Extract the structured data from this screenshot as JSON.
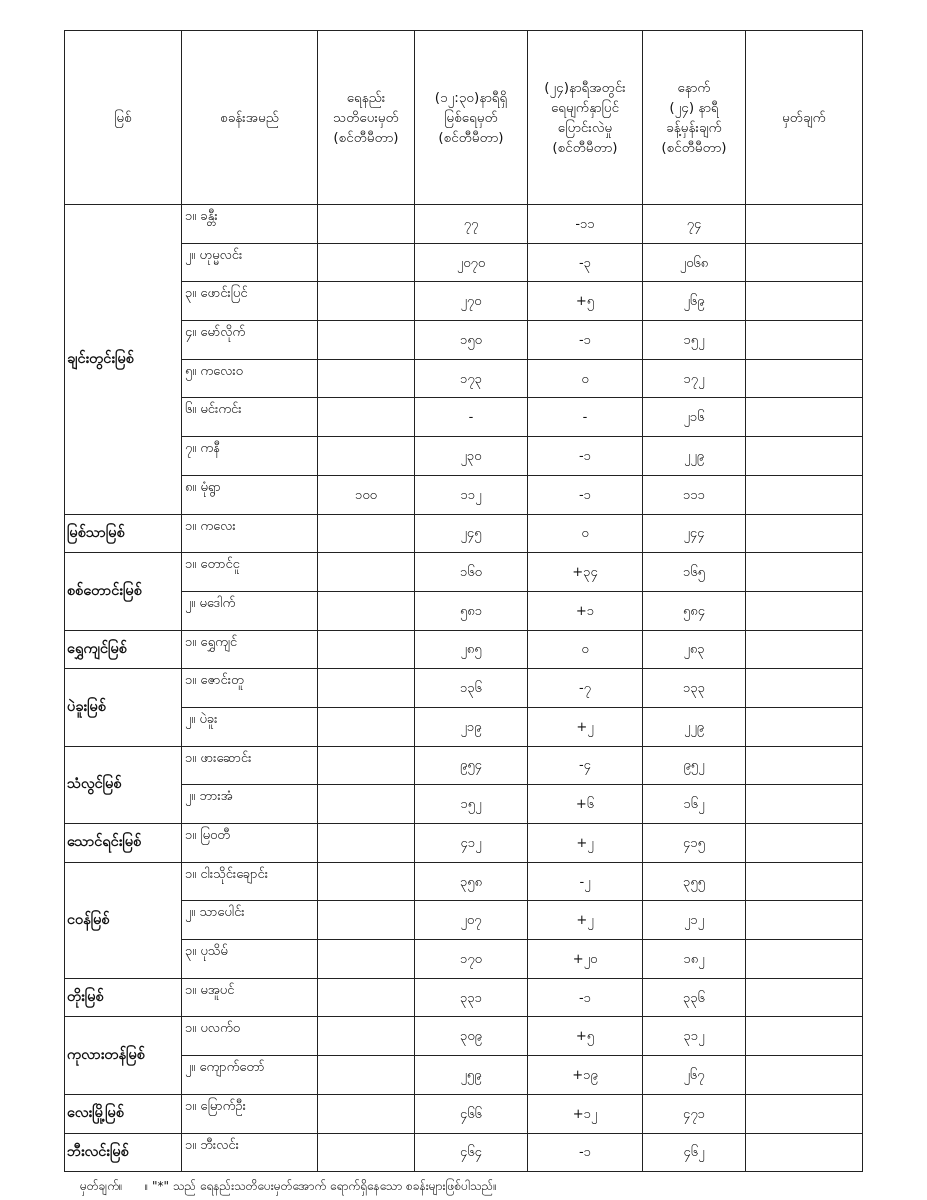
{
  "headers": [
    "မြစ်",
    "စခန်းအမည်",
    "ရေနည်း\nသတိပေးမှတ်\n(စင်တီမီတာ)",
    "(၁၂:၃၀)နာရီရှိ\nမြစ်ရေမှတ်\n(စင်တီမီတာ)",
    "(၂၄)နာရီအတွင်း\nရေမျက်နှာပြင်\nပြောင်းလဲမှု\n(စင်တီမီတာ)",
    "နောက်\n(၂၄) နာရီ\nခန့်မှန်းချက်\n(စင်တီမီတာ)",
    "မှတ်ချက်"
  ],
  "rivers": [
    {
      "name": "ချင်းတွင်းမြစ်",
      "stations": [
        {
          "name": "၁။ ခန္တီး",
          "warning": "",
          "level": "၇၇",
          "change": "-၁၁",
          "forecast": "၇၄",
          "remark": ""
        },
        {
          "name": "၂။ ဟုမ္မလင်း",
          "warning": "",
          "level": "၂၀၇၀",
          "change": "-၃",
          "forecast": "၂၀၆၈",
          "remark": ""
        },
        {
          "name": "၃။ ဖောင်းပြင်",
          "warning": "",
          "level": "၂၇၀",
          "change": "+၅",
          "forecast": "၂၆၉",
          "remark": ""
        },
        {
          "name": "၄။ မော်လိုက်",
          "warning": "",
          "level": "၁၅၀",
          "change": "-၁",
          "forecast": "၁၅၂",
          "remark": ""
        },
        {
          "name": "၅။ ကလေးဝ",
          "warning": "",
          "level": "၁၇၃",
          "change": "၀",
          "forecast": "၁၇၂",
          "remark": ""
        },
        {
          "name": "၆။ မင်းကင်း",
          "warning": "",
          "level": "-",
          "change": "-",
          "forecast": "၂၁၆",
          "remark": ""
        },
        {
          "name": "၇။ ကနီ",
          "warning": "",
          "level": "၂၃၀",
          "change": "-၁",
          "forecast": "၂၂၉",
          "remark": ""
        },
        {
          "name": "၈။ မုံရွာ",
          "warning": "၁၀၀",
          "level": "၁၁၂",
          "change": "-၁",
          "forecast": "၁၁၁",
          "remark": ""
        }
      ]
    },
    {
      "name": "မြစ်သာမြစ်",
      "stations": [
        {
          "name": "၁။ ကလေး",
          "warning": "",
          "level": "၂၄၅",
          "change": "၀",
          "forecast": "၂၄၄",
          "remark": ""
        }
      ]
    },
    {
      "name": "စစ်တောင်းမြစ်",
      "stations": [
        {
          "name": "၁။ တောင်ငူ",
          "warning": "",
          "level": "၁၆၀",
          "change": "+၃၄",
          "forecast": "၁၆၅",
          "remark": ""
        },
        {
          "name": "၂။ မဒေါက်",
          "warning": "",
          "level": "၅၈၁",
          "change": "+၁",
          "forecast": "၅၈၄",
          "remark": ""
        }
      ]
    },
    {
      "name": "ရွှေကျင်မြစ်",
      "stations": [
        {
          "name": "၁။ ရွှေကျင်",
          "warning": "",
          "level": "၂၈၅",
          "change": "၀",
          "forecast": "၂၈၃",
          "remark": ""
        }
      ]
    },
    {
      "name": "ပဲခူးမြစ်",
      "stations": [
        {
          "name": "၁။ ဇောင်းတူ",
          "warning": "",
          "level": "၁၃၆",
          "change": "-၇",
          "forecast": "၁၃၃",
          "remark": ""
        },
        {
          "name": "၂။ ပဲခူး",
          "warning": "",
          "level": "၂၁၉",
          "change": "+၂",
          "forecast": "၂၂၉",
          "remark": ""
        }
      ]
    },
    {
      "name": "သံလွင်မြစ်",
      "stations": [
        {
          "name": "၁။ ဖားဆောင်း",
          "warning": "",
          "level": "၉၅၄",
          "change": "-၄",
          "forecast": "၉၅၂",
          "remark": ""
        },
        {
          "name": "၂။ ဘားအံ",
          "warning": "",
          "level": "၁၅၂",
          "change": "+၆",
          "forecast": "၁၆၂",
          "remark": ""
        }
      ]
    },
    {
      "name": "သောင်ရင်းမြစ်",
      "stations": [
        {
          "name": "၁။ မြဝတီ",
          "warning": "",
          "level": "၄၁၂",
          "change": "+၂",
          "forecast": "၄၁၅",
          "remark": ""
        }
      ]
    },
    {
      "name": "ငဝန်မြစ်",
      "stations": [
        {
          "name": "၁။ ငါးသိုင်းချောင်း",
          "warning": "",
          "level": "၃၅၈",
          "change": "-၂",
          "forecast": "၃၅၅",
          "remark": ""
        },
        {
          "name": "၂။ သာပေါင်း",
          "warning": "",
          "level": "၂၀၇",
          "change": "+၂",
          "forecast": "၂၁၂",
          "remark": ""
        },
        {
          "name": "၃။ ပုသိမ်",
          "warning": "",
          "level": "၁၇၀",
          "change": "+၂၀",
          "forecast": "၁၈၂",
          "remark": ""
        }
      ]
    },
    {
      "name": "တိုးမြစ်",
      "stations": [
        {
          "name": "၁။ မအူပင်",
          "warning": "",
          "level": "၃၃၁",
          "change": "-၁",
          "forecast": "၃၃၆",
          "remark": ""
        }
      ]
    },
    {
      "name": "ကုလားတန်မြစ်",
      "stations": [
        {
          "name": "၁။ ပလက်ဝ",
          "warning": "",
          "level": "၃၀၉",
          "change": "+၅",
          "forecast": "၃၁၂",
          "remark": ""
        },
        {
          "name": "၂။ ကျောက်တော်",
          "warning": "",
          "level": "၂၅၉",
          "change": "+၁၉",
          "forecast": "၂၆၇",
          "remark": ""
        }
      ]
    },
    {
      "name": "လေးမြို့မြစ်",
      "stations": [
        {
          "name": "၁။ မြောက်ဦး",
          "warning": "",
          "level": "၄၆၆",
          "change": "+၁၂",
          "forecast": "၄၇၁",
          "remark": ""
        }
      ]
    },
    {
      "name": "ဘီးလင်းမြစ်",
      "stations": [
        {
          "name": "၁။ ဘီးလင်း",
          "warning": "",
          "level": "၄၆၄",
          "change": "-၁",
          "forecast": "၄၆၂",
          "remark": ""
        }
      ]
    }
  ],
  "note": {
    "label": "မှတ်ချက်။",
    "text": "။ \"*\" သည် ရေနည်းသတိပေးမှတ်အောက် ရောက်ရှိနေသော စခန်းများဖြစ်ပါသည်။"
  }
}
